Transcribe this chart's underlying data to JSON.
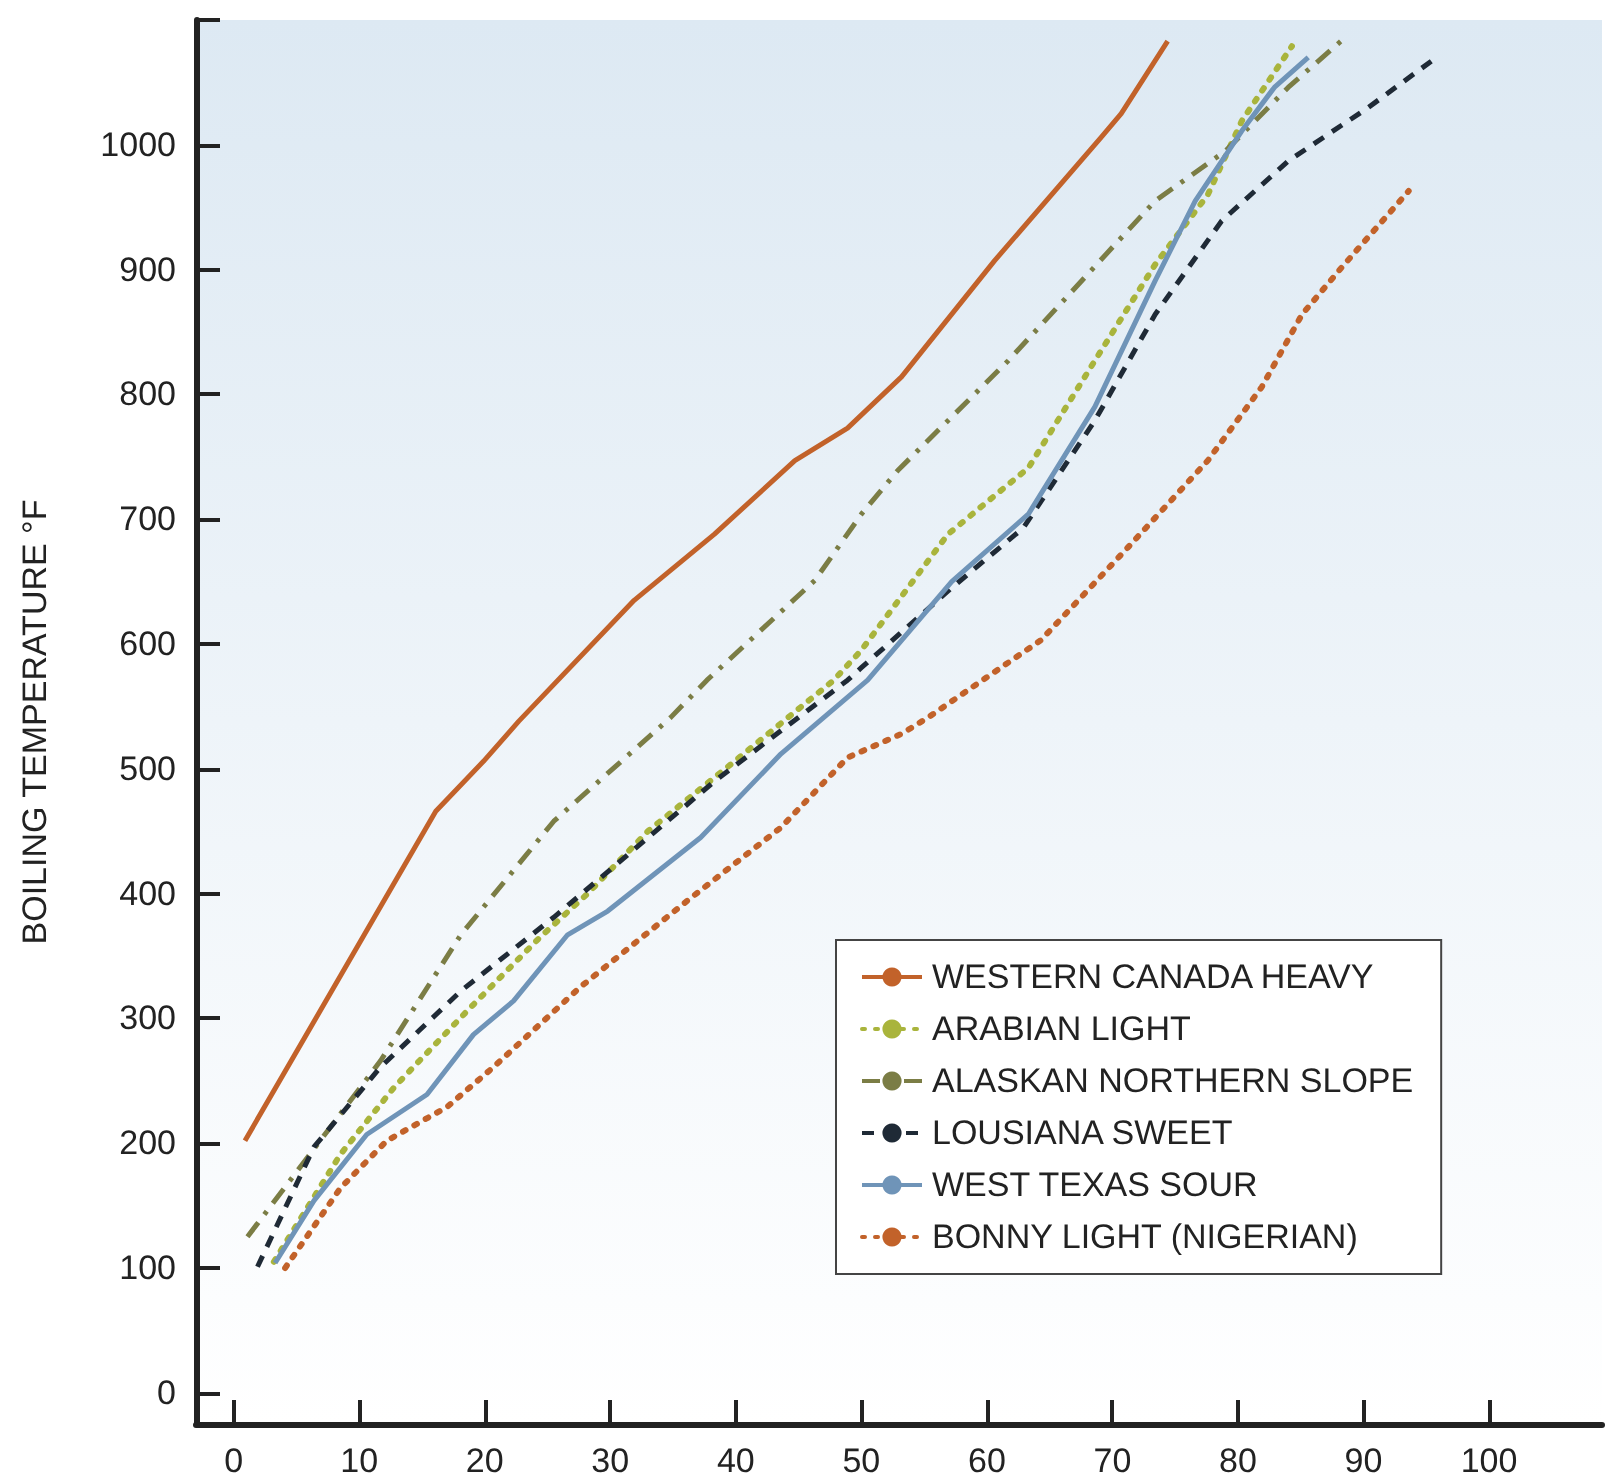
{
  "chart_data": {
    "type": "line",
    "ylabel": "BOILING TEMPERATURE °F",
    "xlim": [
      -3,
      109
    ],
    "xticks": [
      0,
      10,
      20,
      30,
      40,
      50,
      60,
      70,
      80,
      90,
      100
    ],
    "ylim": [
      -25,
      1100
    ],
    "yticks": [
      0,
      100,
      200,
      300,
      400,
      500,
      600,
      700,
      800,
      900,
      1000,
      {
        "value": 1100,
        "label": null
      }
    ],
    "grid": false,
    "legend": "bottom right",
    "marker": "none",
    "series": [
      {
        "name": "WESTERN CANADA HEAVY",
        "color": "#c2622a",
        "line_style": "solid",
        "x": [
          0.9,
          16.1,
          19.9,
          22.7,
          31.9,
          38.3,
          44.7,
          48.9,
          53.2,
          60.6,
          69.1,
          70.7,
          74.4
        ],
        "values": [
          202,
          466,
          506,
          538,
          635,
          688,
          747,
          773,
          814,
          907,
          1006,
          1025,
          1083
        ]
      },
      {
        "name": "ARABIAN LIGHT",
        "color": "#a9b43c",
        "line_style": "dotted",
        "x": [
          3.2,
          8.5,
          12.8,
          18.6,
          24.4,
          28.2,
          33,
          39.9,
          47.8,
          50,
          56.9,
          63.3,
          68.6,
          73.4,
          77.6,
          80.3,
          84.3
        ],
        "values": [
          105,
          191,
          245,
          306,
          365,
          400,
          450,
          506,
          571,
          595,
          688,
          741,
          827,
          904,
          960,
          1019,
          1079
        ]
      },
      {
        "name": "ALASKAN NORTHERN SLOPE",
        "color": "#7b7d45",
        "line_style": "dashdot",
        "x": [
          1.1,
          11.7,
          18.1,
          25.5,
          34.8,
          37.7,
          46.3,
          50,
          52.9,
          61.7,
          73.4,
          79,
          84,
          88.2
        ],
        "values": [
          125,
          266,
          367,
          458,
          541,
          571,
          651,
          704,
          739,
          827,
          955,
          995,
          1046,
          1083
        ]
      },
      {
        "name": "LOUSIANA SWEET",
        "color": "#1f2a36",
        "line_style": "dashed",
        "x": [
          1.9,
          6.4,
          11.7,
          18.1,
          25.5,
          30.8,
          38.3,
          48.9,
          50,
          57.2,
          62.9,
          68.6,
          73.4,
          78.7,
          84,
          90.4,
          95.4
        ],
        "values": [
          101,
          197,
          261,
          322,
          381,
          426,
          490,
          571,
          581,
          645,
          693,
          779,
          864,
          939,
          987,
          1030,
          1067
        ]
      },
      {
        "name": "WEST TEXAS SOUR",
        "color": "#6f94b8",
        "line_style": "solid",
        "x": [
          3.3,
          6.4,
          10.6,
          15.4,
          19.1,
          22.3,
          26.6,
          29.8,
          37.2,
          43.6,
          50.5,
          57.2,
          63.3,
          68.6,
          73.4,
          76.6,
          80.3,
          82.9,
          85.6
        ],
        "values": [
          104,
          154,
          207,
          239,
          287,
          314,
          367,
          386,
          445,
          512,
          571,
          650,
          704,
          790,
          891,
          955,
          1011,
          1046,
          1070
        ]
      },
      {
        "name": "BONNY LIGHT (NIGERIAN)",
        "color": "#c2622a",
        "line_style": "dotted",
        "x": [
          4.1,
          8.5,
          12.2,
          17,
          20.7,
          27.6,
          36.1,
          43.6,
          48.9,
          53.2,
          55.3,
          64.3,
          71.2,
          77.6,
          81.9,
          85.1,
          88.2,
          93.6
        ],
        "values": [
          100,
          164,
          202,
          229,
          261,
          325,
          394,
          453,
          509,
          528,
          541,
          603,
          677,
          747,
          806,
          864,
          901,
          963
        ]
      }
    ]
  }
}
